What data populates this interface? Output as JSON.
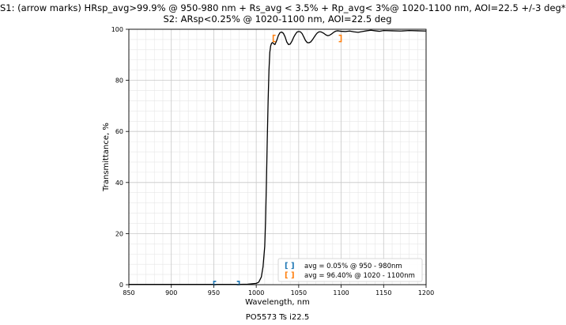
{
  "figure": {
    "title_lines": [
      "S1: (arrow marks) HRsp_avg>99.9% @ 950-980 nm + Rs_avg < 3.5% + Rp_avg< 3%@ 1020-1100 nm, AOI=22.5 +/-3 deg*",
      "S2:  ARsp<0.25% @ 1020-1100 nm, AOI=22.5 deg"
    ],
    "caption": "PO5573 Ts i22.5"
  },
  "chart_data": {
    "type": "line",
    "xlabel": "Wavelength, nm",
    "ylabel": "Transmittance, %",
    "xlim": [
      850,
      1200
    ],
    "ylim": [
      0,
      100
    ],
    "xticks": [
      850,
      900,
      950,
      1000,
      1050,
      1100,
      1150,
      1200
    ],
    "yticks": [
      0,
      20,
      40,
      60,
      80,
      100
    ],
    "grid": true,
    "minor_grid": true,
    "series": [
      {
        "color": "#000000",
        "x": [
          850,
          900,
          950,
          980,
          990,
          1000,
          1003,
          1006,
          1008,
          1010,
          1011,
          1012,
          1013,
          1014,
          1015,
          1016,
          1017,
          1018,
          1019,
          1020,
          1022,
          1024,
          1026,
          1028,
          1030,
          1032,
          1034,
          1036,
          1038,
          1040,
          1042,
          1044,
          1046,
          1048,
          1050,
          1052,
          1054,
          1056,
          1058,
          1060,
          1062,
          1064,
          1066,
          1068,
          1070,
          1072,
          1074,
          1076,
          1078,
          1080,
          1082,
          1084,
          1086,
          1088,
          1090,
          1092,
          1094,
          1096,
          1098,
          1100,
          1105,
          1110,
          1115,
          1120,
          1125,
          1130,
          1135,
          1140,
          1145,
          1150,
          1160,
          1170,
          1180,
          1190,
          1200
        ],
        "y": [
          0.1,
          0.1,
          0.1,
          0.1,
          0.2,
          0.5,
          1,
          3,
          7,
          15,
          25,
          40,
          57,
          72,
          84,
          91,
          93.5,
          94.5,
          94.8,
          94.5,
          94.0,
          95.5,
          97.5,
          98.7,
          98.9,
          98.4,
          97.0,
          95.0,
          94.0,
          94.2,
          95.3,
          96.8,
          98.0,
          98.9,
          99.1,
          99.0,
          98.3,
          97.0,
          95.6,
          94.8,
          94.7,
          95.0,
          95.8,
          96.8,
          97.8,
          98.6,
          99.0,
          99.0,
          98.7,
          98.3,
          97.8,
          97.5,
          97.6,
          98.0,
          98.5,
          99.0,
          99.3,
          99.4,
          99.3,
          99.2,
          99.1,
          99.3,
          99.0,
          98.8,
          99.1,
          99.4,
          99.6,
          99.4,
          99.2,
          99.5,
          99.4,
          99.3,
          99.5,
          99.4,
          99.3
        ]
      }
    ],
    "legend": {
      "position": "lower-right",
      "entries": [
        {
          "symbol": "[ ]",
          "label": "avg = 0.05% @ 950 - 980nm",
          "color": "#1f77b4"
        },
        {
          "symbol": "[ ]",
          "label": "avg = 96.40% @ 1020 - 1100nm",
          "color": "#ff7f0e"
        }
      ]
    },
    "bracket_marks": [
      {
        "x_start": 950,
        "x_end": 980,
        "y": 0.05,
        "color": "#1f77b4"
      },
      {
        "x_start": 1020,
        "x_end": 1100,
        "y": 96.4,
        "color": "#ff7f0e"
      }
    ]
  }
}
